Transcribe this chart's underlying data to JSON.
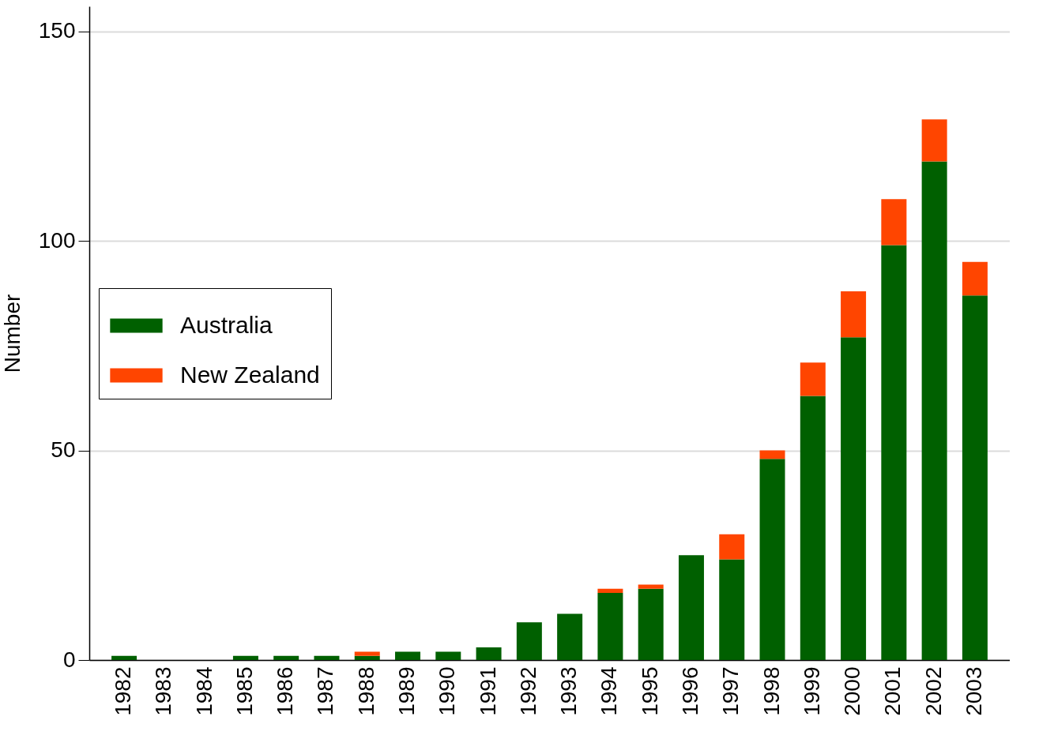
{
  "chart_data": {
    "type": "bar",
    "ylabel": "Number",
    "stacked": true,
    "grid": "y",
    "legend": "left",
    "categories": [
      "1982",
      "1983",
      "1984",
      "1985",
      "1986",
      "1987",
      "1988",
      "1989",
      "1990",
      "1991",
      "1992",
      "1993",
      "1994",
      "1995",
      "1996",
      "1997",
      "1998",
      "1999",
      "2000",
      "2001",
      "2002",
      "2003"
    ],
    "series": [
      {
        "name": "Australia",
        "color": "#006000",
        "values": [
          1,
          0,
          0,
          1,
          1,
          1,
          1,
          2,
          2,
          3,
          9,
          11,
          16,
          17,
          25,
          24,
          48,
          63,
          77,
          99,
          119,
          87
        ]
      },
      {
        "name": "New Zealand",
        "color": "#ff4500",
        "values": [
          0,
          0,
          0,
          0,
          0,
          0,
          1,
          0,
          0,
          0,
          0,
          0,
          1,
          1,
          0,
          6,
          2,
          8,
          11,
          11,
          10,
          8
        ]
      }
    ],
    "ylim": [
      0,
      156
    ],
    "yticks": [
      0,
      50,
      100,
      150
    ]
  }
}
